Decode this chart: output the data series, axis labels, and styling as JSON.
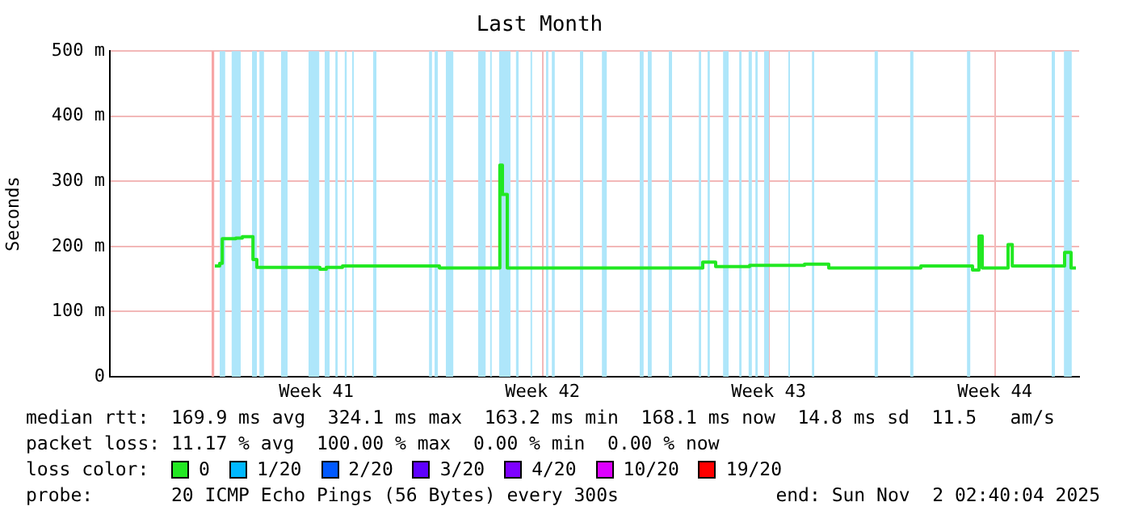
{
  "chart_data": {
    "type": "step",
    "title": "Last Month",
    "ylabel": "Seconds",
    "legend_title": "loss color:",
    "xlim": [
      "2025-10-03T02:40",
      "2025-11-02T02:40"
    ],
    "xticks": [
      {
        "value": "2025-10-09T12:00",
        "label": "Week 41"
      },
      {
        "value": "2025-10-16T12:00",
        "label": "Week 42"
      },
      {
        "value": "2025-10-23T12:00",
        "label": "Week 43"
      },
      {
        "value": "2025-10-30T12:00",
        "label": "Week 44"
      }
    ],
    "ylim": [
      0,
      500
    ],
    "yticks": [
      0,
      {
        "value": 100,
        "label": "100 m"
      },
      {
        "value": 200,
        "label": "200 m"
      },
      {
        "value": 300,
        "label": "300 m"
      },
      {
        "value": 400,
        "label": "400 m"
      },
      {
        "value": 500,
        "label": "500 m"
      }
    ],
    "grid": true,
    "legend": "bottom",
    "x": [
      "2025-10-06T08:40",
      "2025-10-06T12:16",
      "2025-10-06T14:11",
      "2025-10-07T00:16",
      "2025-10-07T05:04",
      "2025-10-07T12:59",
      "2025-10-07T15:52",
      "2025-10-09T14:40",
      "2025-10-09T19:28",
      "2025-10-10T07:28",
      "2025-10-13T00:16",
      "2025-10-13T07:28",
      "2025-10-15T04:21",
      "2025-10-15T06:16",
      "2025-10-15T09:52",
      "2025-10-21T11:04",
      "2025-10-21T20:40",
      "2025-10-22T21:52",
      "2025-10-24T14:40",
      "2025-10-25T08:40",
      "2025-10-28T05:04",
      "2025-10-29T19:28",
      "2025-10-30T00:16",
      "2025-10-30T02:40",
      "2025-10-30T21:52",
      "2025-10-31T00:59",
      "2025-11-01T15:52",
      "2025-11-01T20:40",
      "2025-11-02T00:16"
    ],
    "series": [
      {
        "name": "0",
        "color": "#22e822",
        "values": [
          170,
          174,
          212,
          213,
          215,
          180,
          168,
          165,
          168,
          170,
          170,
          167,
          325,
          280,
          167,
          176,
          169,
          171,
          173,
          167,
          170,
          164,
          216,
          167,
          203,
          170,
          191,
          167,
          167
        ]
      },
      {
        "name": "1/20",
        "color": "#00b8ff",
        "values": [
          null,
          null,
          null,
          null,
          null,
          null,
          null,
          null,
          null,
          null,
          null,
          null,
          null,
          null,
          null,
          null,
          null,
          null,
          null,
          null,
          null,
          null,
          null,
          null,
          null,
          null,
          null,
          null,
          null
        ]
      },
      {
        "name": "2/20",
        "color": "#0059ff",
        "values": [
          null,
          null,
          null,
          null,
          null,
          null,
          null,
          null,
          null,
          null,
          null,
          null,
          null,
          null,
          null,
          null,
          null,
          null,
          null,
          null,
          null,
          null,
          null,
          null,
          null,
          null,
          null,
          null,
          null
        ]
      },
      {
        "name": "3/20",
        "color": "#5e00ff",
        "values": [
          null,
          null,
          null,
          null,
          null,
          null,
          null,
          null,
          null,
          null,
          null,
          null,
          null,
          null,
          null,
          null,
          null,
          null,
          null,
          null,
          null,
          null,
          null,
          null,
          null,
          null,
          null,
          null,
          null
        ]
      },
      {
        "name": "4/20",
        "color": "#7e00ff",
        "values": [
          null,
          null,
          null,
          null,
          null,
          null,
          null,
          null,
          null,
          null,
          null,
          null,
          null,
          null,
          null,
          null,
          null,
          null,
          null,
          null,
          null,
          null,
          null,
          null,
          null,
          null,
          null,
          null,
          null
        ]
      },
      {
        "name": "10/20",
        "color": "#dd00ff",
        "values": [
          null,
          null,
          null,
          null,
          null,
          null,
          null,
          null,
          null,
          null,
          null,
          null,
          null,
          null,
          null,
          null,
          null,
          null,
          null,
          null,
          null,
          null,
          null,
          null,
          null,
          null,
          null,
          null,
          null
        ]
      },
      {
        "name": "19/20",
        "color": "#ff0000",
        "values": [
          null,
          null,
          null,
          null,
          null,
          null,
          null,
          null,
          null,
          null,
          null,
          null,
          null,
          null,
          null,
          null,
          null,
          null,
          null,
          null,
          null,
          null,
          null,
          null,
          null,
          null,
          null,
          null,
          null
        ]
      }
    ],
    "bands": [
      {
        "axis": "x",
        "from": "2025-10-06T06:16",
        "to": "2025-10-06T08:11",
        "color": "#f7a6a6"
      },
      {
        "axis": "x",
        "from": "2025-10-06T12:16",
        "to": "2025-10-06T16:21",
        "color": "#aee6fa"
      },
      {
        "axis": "x",
        "from": "2025-10-06T21:09",
        "to": "2025-10-07T03:52",
        "color": "#aee6fa"
      },
      {
        "axis": "x",
        "from": "2025-10-07T12:16",
        "to": "2025-10-07T15:52",
        "color": "#aee6fa"
      },
      {
        "axis": "x",
        "from": "2025-10-07T17:47",
        "to": "2025-10-07T21:09",
        "color": "#aee6fa"
      },
      {
        "axis": "x",
        "from": "2025-10-08T09:52",
        "to": "2025-10-08T14:40",
        "color": "#aee6fa"
      },
      {
        "axis": "x",
        "from": "2025-10-09T06:16",
        "to": "2025-10-09T14:11",
        "color": "#aee6fa"
      },
      {
        "axis": "x",
        "from": "2025-10-09T18:16",
        "to": "2025-10-09T21:52",
        "color": "#aee6fa"
      },
      {
        "axis": "x",
        "from": "2025-10-10T02:11",
        "to": "2025-10-10T03:52",
        "color": "#aee6fa"
      },
      {
        "axis": "x",
        "from": "2025-10-10T09:09",
        "to": "2025-10-10T10:35",
        "color": "#aee6fa"
      },
      {
        "axis": "x",
        "from": "2025-10-10T14:40",
        "to": "2025-10-10T15:52",
        "color": "#aee6fa"
      },
      {
        "axis": "x",
        "from": "2025-10-11T06:16",
        "to": "2025-10-11T08:40",
        "color": "#aee6fa"
      },
      {
        "axis": "x",
        "from": "2025-10-12T23:47",
        "to": "2025-10-13T01:57",
        "color": "#aee6fa"
      },
      {
        "axis": "x",
        "from": "2025-10-13T03:52",
        "to": "2025-10-13T06:16",
        "color": "#aee6fa"
      },
      {
        "axis": "x",
        "from": "2025-10-13T12:16",
        "to": "2025-10-13T17:47",
        "color": "#aee6fa"
      },
      {
        "axis": "x",
        "from": "2025-10-14T12:16",
        "to": "2025-10-14T17:47",
        "color": "#aee6fa"
      },
      {
        "axis": "x",
        "from": "2025-10-14T21:09",
        "to": "2025-10-14T22:21",
        "color": "#aee6fa"
      },
      {
        "axis": "x",
        "from": "2025-10-15T03:52",
        "to": "2025-10-15T12:16",
        "color": "#aee6fa"
      },
      {
        "axis": "x",
        "from": "2025-10-15T16:21",
        "to": "2025-10-15T18:16",
        "color": "#aee6fa"
      },
      {
        "axis": "x",
        "from": "2025-10-16T03:09",
        "to": "2025-10-16T04:21",
        "color": "#aee6fa"
      },
      {
        "axis": "x",
        "from": "2025-10-16T14:40",
        "to": "2025-10-16T16:21",
        "color": "#aee6fa"
      },
      {
        "axis": "x",
        "from": "2025-10-16T18:59",
        "to": "2025-10-16T21:09",
        "color": "#aee6fa"
      },
      {
        "axis": "x",
        "from": "2025-10-17T15:52",
        "to": "2025-10-17T18:16",
        "color": "#aee6fa"
      },
      {
        "axis": "x",
        "from": "2025-10-18T08:11",
        "to": "2025-10-18T11:47",
        "color": "#aee6fa"
      },
      {
        "axis": "x",
        "from": "2025-10-19T12:16",
        "to": "2025-10-19T15:09",
        "color": "#aee6fa"
      },
      {
        "axis": "x",
        "from": "2025-10-19T18:16",
        "to": "2025-10-19T21:09",
        "color": "#aee6fa"
      },
      {
        "axis": "x",
        "from": "2025-10-20T09:52",
        "to": "2025-10-20T12:16",
        "color": "#aee6fa"
      },
      {
        "axis": "x",
        "from": "2025-10-21T08:11",
        "to": "2025-10-21T09:52",
        "color": "#aee6fa"
      },
      {
        "axis": "x",
        "from": "2025-10-21T14:40",
        "to": "2025-10-21T16:21",
        "color": "#aee6fa"
      },
      {
        "axis": "x",
        "from": "2025-10-22T02:11",
        "to": "2025-10-22T06:16",
        "color": "#aee6fa"
      },
      {
        "axis": "x",
        "from": "2025-10-22T14:11",
        "to": "2025-10-22T15:52",
        "color": "#aee6fa"
      },
      {
        "axis": "x",
        "from": "2025-10-22T21:09",
        "to": "2025-10-22T23:33",
        "color": "#aee6fa"
      },
      {
        "axis": "x",
        "from": "2025-10-23T02:11",
        "to": "2025-10-23T03:52",
        "color": "#aee6fa"
      },
      {
        "axis": "x",
        "from": "2025-10-23T08:40",
        "to": "2025-10-23T12:16",
        "color": "#aee6fa"
      },
      {
        "axis": "x",
        "from": "2025-10-24T02:40",
        "to": "2025-10-24T03:52",
        "color": "#aee6fa"
      },
      {
        "axis": "x",
        "from": "2025-10-24T20:11",
        "to": "2025-10-24T21:52",
        "color": "#aee6fa"
      },
      {
        "axis": "x",
        "from": "2025-10-26T18:45",
        "to": "2025-10-26T21:09",
        "color": "#aee6fa"
      },
      {
        "axis": "x",
        "from": "2025-10-27T21:09",
        "to": "2025-10-27T23:33",
        "color": "#aee6fa"
      },
      {
        "axis": "x",
        "from": "2025-10-29T15:23",
        "to": "2025-10-29T17:47",
        "color": "#aee6fa"
      },
      {
        "axis": "x",
        "from": "2025-11-01T06:16",
        "to": "2025-11-01T08:40",
        "color": "#aee6fa"
      },
      {
        "axis": "x",
        "from": "2025-11-01T15:23",
        "to": "2025-11-01T21:09",
        "color": "#aee6fa"
      }
    ],
    "annotations": [
      "median rtt:  169.9 ms avg  324.1 ms max  163.2 ms min  168.1 ms now  14.8 ms sd  11.5   am/s",
      "packet loss: 11.17 % avg  100.00 % max  0.00 % min  0.00 % now",
      "probe:       20 ICMP Echo Pings (56 Bytes) every 300s",
      "end: Sun Nov  2 02:40:04 2025"
    ]
  }
}
